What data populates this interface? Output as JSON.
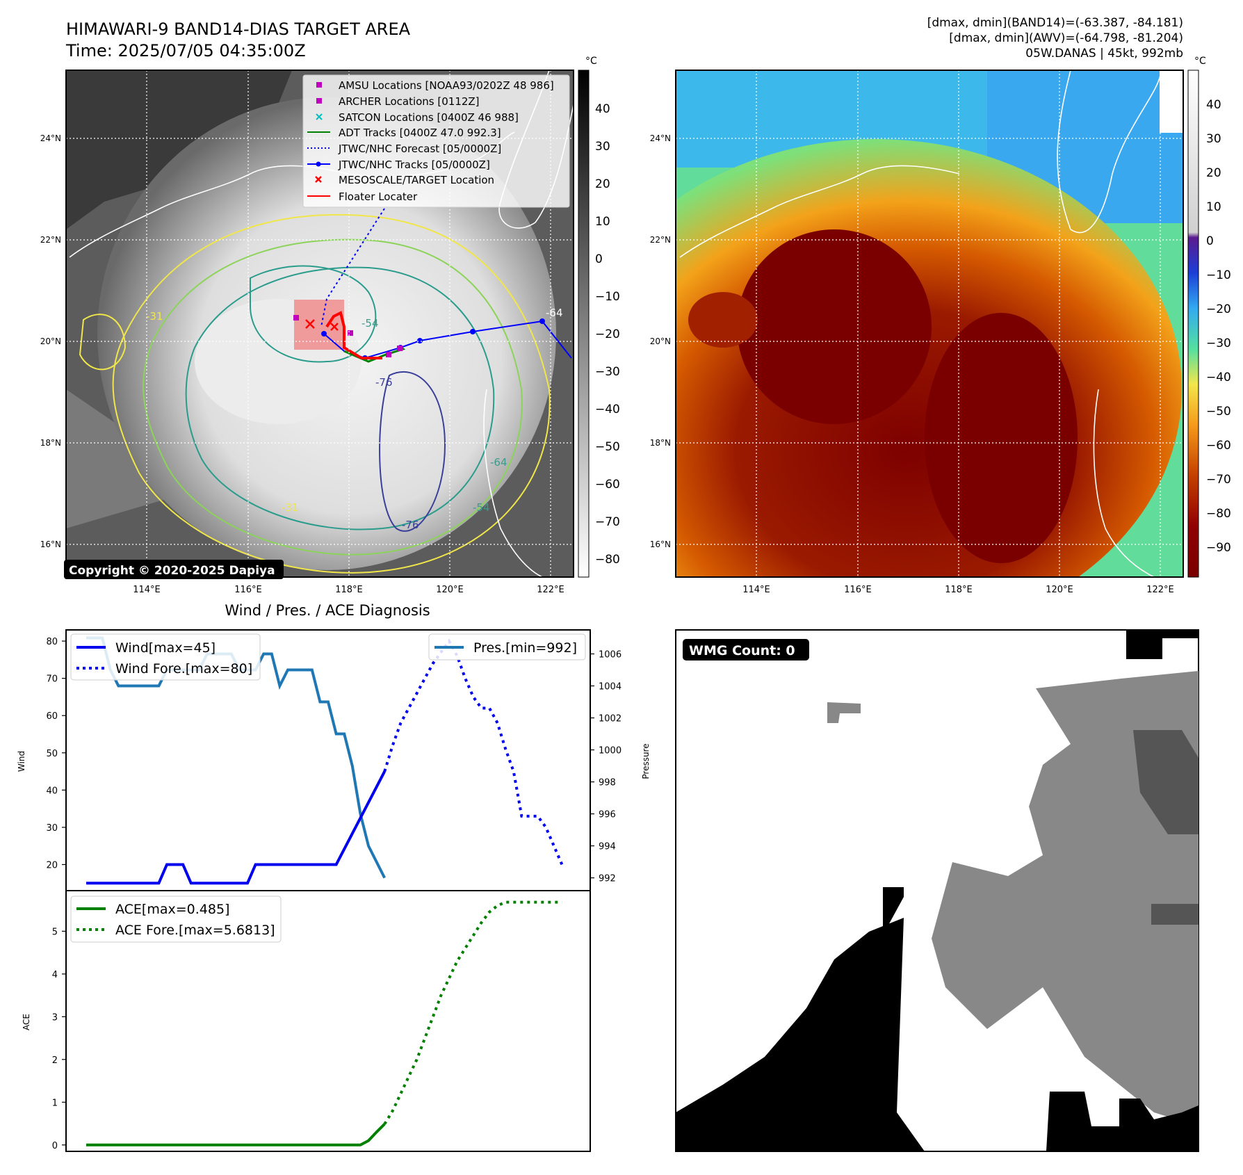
{
  "header": {
    "title_line1": "HIMAWARI-9 BAND14-DIAS TARGET AREA",
    "title_line2": "Time: 2025/07/05 04:35:00Z",
    "info_line1": "[dmax, dmin](BAND14)=(-63.387, -84.181)",
    "info_line2": "[dmax, dmin](AWV)=(-64.798, -81.204)",
    "info_line3": "05W.DANAS | 45kt, 992mb"
  },
  "map_axes": {
    "lat_ticks": [
      "24°N",
      "22°N",
      "20°N",
      "18°N",
      "16°N"
    ],
    "lon_ticks": [
      "114°E",
      "116°E",
      "118°E",
      "120°E",
      "122°E"
    ]
  },
  "left_map": {
    "legend": [
      {
        "label": "AMSU Locations [NOAA93/0202Z 48 986]",
        "marker": "square",
        "color": "#bf00bf"
      },
      {
        "label": "ARCHER Locations [0112Z]",
        "marker": "square",
        "color": "#bf00bf"
      },
      {
        "label": "SATCON Locations [0400Z 46 988]",
        "marker": "x",
        "color": "#00bfbf"
      },
      {
        "label": "ADT Tracks [0400Z 47.0 992.3]",
        "marker": "line",
        "color": "#008000"
      },
      {
        "label": "JTWC/NHC Forecast [05/0000Z]",
        "marker": "dotted",
        "color": "#0000ff"
      },
      {
        "label": "JTWC/NHC Tracks [05/0000Z]",
        "marker": "line-dot",
        "color": "#0000ff"
      },
      {
        "label": "MESOSCALE/TARGET Location",
        "marker": "x",
        "color": "#ff0000"
      },
      {
        "label": "Floater Locater",
        "marker": "line",
        "color": "#ff0000"
      }
    ],
    "copyright": "Copyright © 2020-2025 Dapiya",
    "contour_labels": [
      "-31",
      "-54",
      "-64",
      "-76",
      "-76",
      "-31",
      "-54",
      "-64"
    ],
    "colorbar": {
      "unit": "°C",
      "ticks": [
        "40",
        "30",
        "20",
        "10",
        "0",
        "−10",
        "−20",
        "−30",
        "−40",
        "−50",
        "−60",
        "−70",
        "−80"
      ]
    }
  },
  "right_map": {
    "colorbar": {
      "unit": "°C",
      "ticks": [
        "40",
        "30",
        "20",
        "10",
        "0",
        "−10",
        "−20",
        "−30",
        "−40",
        "−50",
        "−60",
        "−70",
        "−80",
        "−90"
      ]
    }
  },
  "diagnosis": {
    "title": "Wind / Pres. / ACE Diagnosis",
    "wind_ylabel": "Wind",
    "pres_ylabel": "Pressure",
    "ace_ylabel": "ACE",
    "wind_ticks": [
      "80",
      "70",
      "60",
      "50",
      "40",
      "30",
      "20"
    ],
    "pres_ticks": [
      "1006",
      "1004",
      "1002",
      "1000",
      "998",
      "996",
      "994",
      "992"
    ],
    "ace_ticks": [
      "5",
      "4",
      "3",
      "2",
      "1",
      "0"
    ],
    "legend_wind": "Wind[max=45]",
    "legend_wind_fore": "Wind Fore.[max=80]",
    "legend_pres": "Pres.[min=992]",
    "legend_ace": "ACE[max=0.485]",
    "legend_ace_fore": "ACE Fore.[max=5.6813]"
  },
  "wmg": {
    "badge": "WMG Count: 0"
  },
  "chart_data": [
    {
      "type": "line",
      "name": "wind",
      "ylim": [
        13,
        83
      ],
      "x": [
        0,
        1,
        2,
        3,
        4,
        5,
        6,
        7,
        8,
        9,
        10,
        11,
        12,
        13,
        14,
        15,
        16,
        17,
        18,
        19,
        20,
        21,
        22,
        23,
        24,
        25,
        26,
        27,
        28,
        29,
        30,
        31,
        32,
        33,
        34,
        35,
        36,
        37,
        38,
        39,
        40,
        41,
        42,
        43,
        44,
        45,
        46,
        47,
        48,
        49,
        50,
        51,
        52,
        53,
        54,
        55,
        56,
        57,
        58,
        59,
        60
      ],
      "series": [
        {
          "name": "Wind[max=45]",
          "color": "#0000ee",
          "x": [
            0,
            9,
            10,
            12,
            13,
            14,
            20,
            21,
            30,
            31,
            37
          ],
          "values": [
            15,
            15,
            20,
            20,
            15,
            15,
            15,
            20,
            20,
            20,
            45
          ]
        },
        {
          "name": "Wind Fore.[max=80]",
          "color": "#0000ee",
          "dash": true,
          "x": [
            37,
            38,
            39,
            40,
            41,
            42,
            43,
            44,
            45,
            46,
            47,
            48,
            49,
            50,
            51,
            52,
            53,
            54,
            55,
            56,
            57,
            58,
            59
          ],
          "values": [
            45,
            52,
            58,
            62,
            66,
            70,
            74,
            77,
            80,
            76,
            70,
            65,
            62,
            62,
            58,
            51,
            45,
            33,
            33,
            33,
            30,
            25,
            20
          ]
        }
      ]
    },
    {
      "type": "line",
      "name": "pressure",
      "ylim": [
        991.2,
        1007.5
      ],
      "series": [
        {
          "name": "Pres.[min=992]",
          "color": "#1f77b4",
          "x": [
            0,
            2,
            3,
            4,
            6,
            7,
            9,
            10,
            11,
            14,
            15,
            16,
            18,
            19,
            20,
            21,
            22,
            23,
            24,
            25,
            27,
            28,
            29,
            30,
            31,
            32,
            33,
            34,
            35,
            36,
            37
          ],
          "values": [
            1007,
            1007,
            1005,
            1004,
            1004,
            1004,
            1004,
            1005,
            1005,
            1005,
            1006,
            1006,
            1006,
            1005,
            1005,
            1005,
            1006,
            1006,
            1004,
            1005,
            1005,
            1005,
            1003,
            1003,
            1001,
            1001,
            999,
            996,
            994,
            993,
            992
          ]
        }
      ]
    },
    {
      "type": "line",
      "name": "ace",
      "ylim": [
        -0.15,
        5.95
      ],
      "series": [
        {
          "name": "ACE[max=0.485]",
          "color": "#008000",
          "x": [
            0,
            34,
            35,
            36,
            37
          ],
          "values": [
            0,
            0,
            0.1,
            0.3,
            0.49
          ]
        },
        {
          "name": "ACE Fore.[max=5.6813]",
          "color": "#008000",
          "dash": true,
          "x": [
            37,
            38,
            39,
            40,
            41,
            42,
            43,
            44,
            45,
            46,
            47,
            48,
            49,
            50,
            51,
            52,
            53,
            54,
            55,
            56,
            57,
            58,
            59
          ],
          "values": [
            0.49,
            0.8,
            1.2,
            1.6,
            2.0,
            2.5,
            3.0,
            3.5,
            3.9,
            4.3,
            4.6,
            4.9,
            5.2,
            5.45,
            5.6,
            5.68,
            5.68,
            5.68,
            5.68,
            5.68,
            5.68,
            5.68,
            5.68
          ]
        }
      ]
    }
  ]
}
